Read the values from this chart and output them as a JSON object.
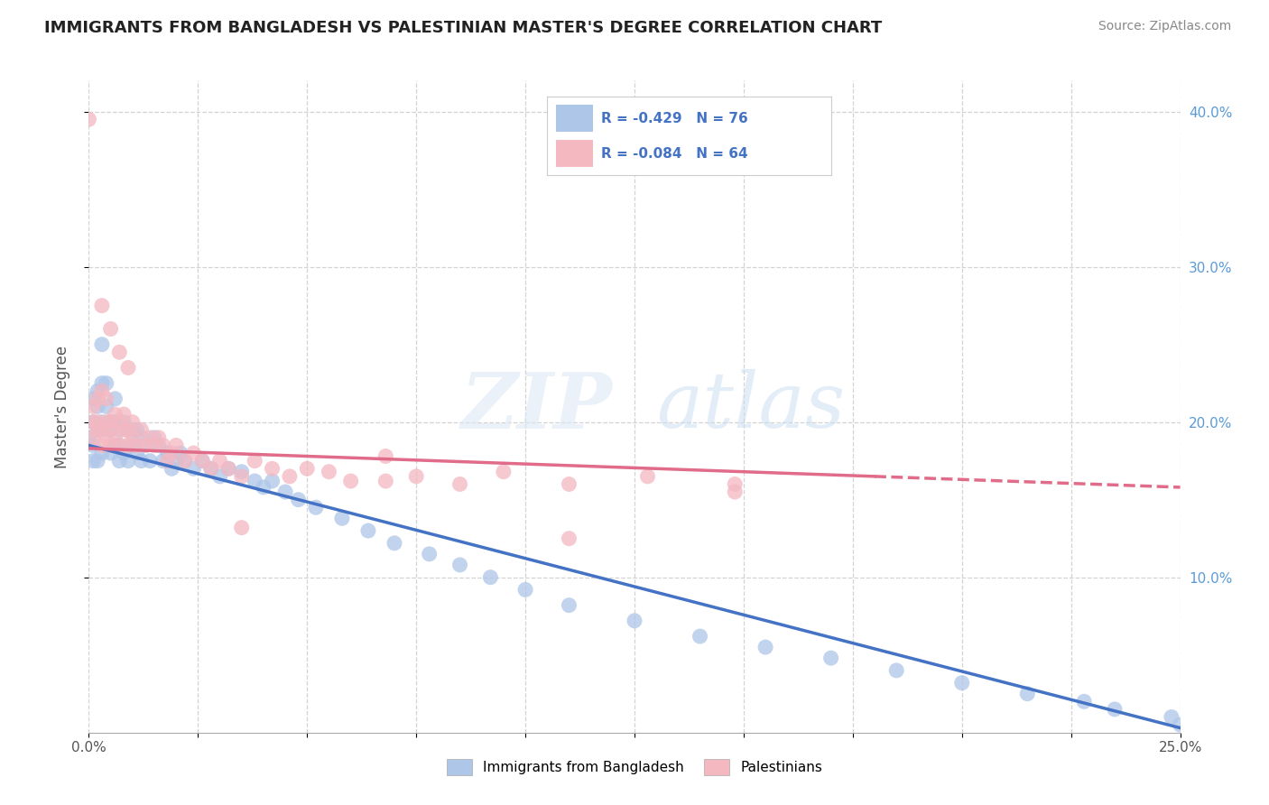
{
  "title": "IMMIGRANTS FROM BANGLADESH VS PALESTINIAN MASTER'S DEGREE CORRELATION CHART",
  "source": "Source: ZipAtlas.com",
  "ylabel": "Master's Degree",
  "xlim": [
    0.0,
    0.25
  ],
  "ylim": [
    0.0,
    0.42
  ],
  "x_ticks": [
    0.0,
    0.025,
    0.05,
    0.075,
    0.1,
    0.125,
    0.15,
    0.175,
    0.2,
    0.225,
    0.25
  ],
  "x_tick_labels_bottom": [
    "0.0%",
    "",
    "",
    "",
    "",
    "",
    "",
    "",
    "",
    "",
    "25.0%"
  ],
  "y_ticks": [
    0.1,
    0.2,
    0.3,
    0.4
  ],
  "y_tick_labels": [
    "10.0%",
    "20.0%",
    "30.0%",
    "40.0%"
  ],
  "legend_entries": [
    {
      "label": "R = -0.429   N = 76",
      "color": "#aec6e8"
    },
    {
      "label": "R = -0.084   N = 64",
      "color": "#f4b8c1"
    }
  ],
  "legend_labels_bottom": [
    "Immigrants from Bangladesh",
    "Palestinians"
  ],
  "bangladesh_color": "#aec6e8",
  "palestine_color": "#f4b8c1",
  "bangladesh_line_color": "#4472c4",
  "palestine_line_color": "#e06c8a",
  "background_color": "#ffffff",
  "grid_color": "#c8c8c8",
  "bangladesh_x": [
    0.0,
    0.001,
    0.001,
    0.001,
    0.001,
    0.002,
    0.002,
    0.002,
    0.002,
    0.003,
    0.003,
    0.003,
    0.003,
    0.004,
    0.004,
    0.004,
    0.005,
    0.005,
    0.005,
    0.006,
    0.006,
    0.006,
    0.007,
    0.007,
    0.007,
    0.008,
    0.008,
    0.009,
    0.009,
    0.01,
    0.01,
    0.011,
    0.011,
    0.012,
    0.012,
    0.013,
    0.014,
    0.015,
    0.016,
    0.017,
    0.018,
    0.019,
    0.02,
    0.021,
    0.022,
    0.024,
    0.026,
    0.028,
    0.03,
    0.032,
    0.035,
    0.038,
    0.04,
    0.042,
    0.045,
    0.048,
    0.052,
    0.058,
    0.064,
    0.07,
    0.078,
    0.085,
    0.092,
    0.1,
    0.11,
    0.125,
    0.14,
    0.155,
    0.17,
    0.185,
    0.2,
    0.215,
    0.228,
    0.235,
    0.248,
    0.25
  ],
  "bangladesh_y": [
    0.19,
    0.215,
    0.2,
    0.185,
    0.175,
    0.21,
    0.195,
    0.22,
    0.175,
    0.25,
    0.225,
    0.2,
    0.18,
    0.195,
    0.21,
    0.225,
    0.195,
    0.18,
    0.2,
    0.185,
    0.2,
    0.215,
    0.185,
    0.195,
    0.175,
    0.18,
    0.2,
    0.195,
    0.175,
    0.185,
    0.195,
    0.18,
    0.195,
    0.19,
    0.175,
    0.185,
    0.175,
    0.19,
    0.185,
    0.175,
    0.18,
    0.17,
    0.175,
    0.18,
    0.175,
    0.17,
    0.175,
    0.17,
    0.165,
    0.17,
    0.168,
    0.162,
    0.158,
    0.162,
    0.155,
    0.15,
    0.145,
    0.138,
    0.13,
    0.122,
    0.115,
    0.108,
    0.1,
    0.092,
    0.082,
    0.072,
    0.062,
    0.055,
    0.048,
    0.04,
    0.032,
    0.025,
    0.02,
    0.015,
    0.01,
    0.005
  ],
  "palestine_x": [
    0.0,
    0.001,
    0.001,
    0.001,
    0.002,
    0.002,
    0.002,
    0.003,
    0.003,
    0.003,
    0.004,
    0.004,
    0.004,
    0.005,
    0.005,
    0.005,
    0.006,
    0.006,
    0.007,
    0.007,
    0.008,
    0.008,
    0.009,
    0.009,
    0.01,
    0.01,
    0.011,
    0.012,
    0.013,
    0.014,
    0.015,
    0.016,
    0.017,
    0.018,
    0.019,
    0.02,
    0.022,
    0.024,
    0.026,
    0.028,
    0.03,
    0.032,
    0.035,
    0.038,
    0.042,
    0.046,
    0.05,
    0.055,
    0.06,
    0.068,
    0.075,
    0.085,
    0.095,
    0.11,
    0.128,
    0.148,
    0.035,
    0.068,
    0.11,
    0.148,
    0.003,
    0.005,
    0.007,
    0.009
  ],
  "palestine_y": [
    0.395,
    0.19,
    0.2,
    0.21,
    0.195,
    0.2,
    0.215,
    0.185,
    0.195,
    0.22,
    0.2,
    0.215,
    0.19,
    0.2,
    0.185,
    0.195,
    0.205,
    0.19,
    0.2,
    0.185,
    0.195,
    0.205,
    0.185,
    0.195,
    0.19,
    0.2,
    0.185,
    0.195,
    0.185,
    0.19,
    0.185,
    0.19,
    0.185,
    0.175,
    0.18,
    0.185,
    0.175,
    0.18,
    0.175,
    0.17,
    0.175,
    0.17,
    0.165,
    0.175,
    0.17,
    0.165,
    0.17,
    0.168,
    0.162,
    0.162,
    0.165,
    0.16,
    0.168,
    0.16,
    0.165,
    0.16,
    0.132,
    0.178,
    0.125,
    0.155,
    0.275,
    0.26,
    0.245,
    0.235
  ],
  "trendline_bangladesh_start_y": 0.185,
  "trendline_bangladesh_end_y": 0.003,
  "trendline_palestine_start_y": 0.183,
  "trendline_palestine_end_y": 0.158
}
